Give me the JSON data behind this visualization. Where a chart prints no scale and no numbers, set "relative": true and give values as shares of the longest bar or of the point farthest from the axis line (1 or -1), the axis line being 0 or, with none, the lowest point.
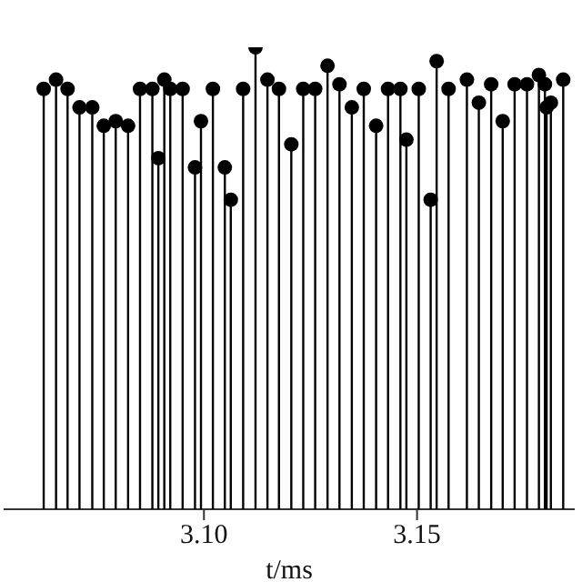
{
  "chart_data": {
    "type": "lollipop",
    "xlabel": "t/ms",
    "relative": true,
    "tick_labels": "x",
    "marker": "circle",
    "xlim": [
      3.053,
      3.187
    ],
    "xticks": [
      {
        "value": 3.1,
        "label": "3.10"
      },
      {
        "value": 3.15,
        "label": "3.15"
      }
    ],
    "series": [
      {
        "color": "#000000",
        "x": [
          3.0624,
          3.0653,
          3.068,
          3.0708,
          3.0738,
          3.0765,
          3.0793,
          3.0822,
          3.085,
          3.0879,
          3.0893,
          3.0907,
          3.0921,
          3.095,
          3.0979,
          3.0993,
          3.1021,
          3.1049,
          3.1063,
          3.1092,
          3.1121,
          3.1149,
          3.1176,
          3.1205,
          3.1233,
          3.1261,
          3.129,
          3.1318,
          3.1347,
          3.1375,
          3.1404,
          3.1432,
          3.1461,
          3.1475,
          3.1504,
          3.1532,
          3.1546,
          3.1574,
          3.1617,
          3.1645,
          3.1674,
          3.1701,
          3.1729,
          3.1758,
          3.1786,
          3.18,
          3.1804,
          3.1814,
          3.1843
        ],
        "values": [
          0.91,
          0.93,
          0.91,
          0.87,
          0.87,
          0.83,
          0.84,
          0.83,
          0.91,
          0.91,
          0.76,
          0.93,
          0.91,
          0.91,
          0.74,
          0.84,
          0.91,
          0.74,
          0.67,
          0.91,
          1,
          0.93,
          0.91,
          0.79,
          0.91,
          0.91,
          0.96,
          0.92,
          0.87,
          0.91,
          0.83,
          0.91,
          0.91,
          0.8,
          0.91,
          0.67,
          0.97,
          0.91,
          0.93,
          0.88,
          0.92,
          0.84,
          0.92,
          0.92,
          0.94,
          0.92,
          0.87,
          0.88,
          0.93
        ]
      }
    ]
  }
}
